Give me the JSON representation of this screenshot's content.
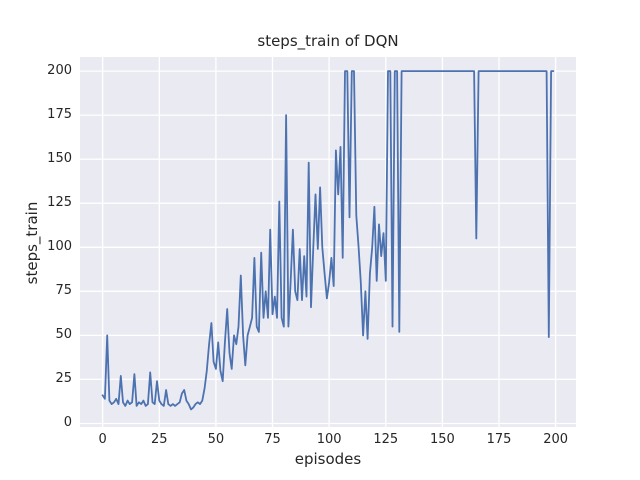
{
  "colors": {
    "line": "#4C72B0",
    "plot_background": "#EAEAF2",
    "grid": "#FFFFFF",
    "text": "#262626",
    "figure_background": "#FFFFFF"
  },
  "chart_data": {
    "type": "line",
    "title": "steps_train of DQN",
    "xlabel": "episodes",
    "ylabel": "steps_train",
    "x_ticks": [
      0,
      25,
      50,
      75,
      100,
      125,
      150,
      175,
      200
    ],
    "y_ticks": [
      0,
      25,
      50,
      75,
      100,
      125,
      150,
      175,
      200
    ],
    "xlim": [
      -10,
      209
    ],
    "ylim": [
      -2,
      208
    ],
    "grid": true,
    "legend": false,
    "series": [
      {
        "name": "steps_train",
        "color": "#4C72B0",
        "x_start": 0,
        "x_step": 1,
        "values": [
          16,
          14,
          50,
          13,
          11,
          12,
          14,
          11,
          27,
          12,
          10,
          13,
          11,
          12,
          28,
          10,
          12,
          11,
          13,
          10,
          11,
          29,
          12,
          11,
          24,
          13,
          11,
          10,
          19,
          11,
          10,
          11,
          10,
          11,
          12,
          17,
          19,
          13,
          11,
          8,
          9,
          11,
          12,
          11,
          13,
          20,
          30,
          45,
          57,
          35,
          31,
          46,
          30,
          24,
          46,
          65,
          40,
          31,
          50,
          45,
          55,
          84,
          50,
          33,
          50,
          55,
          60,
          94,
          55,
          52,
          97,
          60,
          75,
          60,
          110,
          62,
          72,
          60,
          126,
          60,
          55,
          175,
          55,
          80,
          110,
          75,
          70,
          99,
          70,
          95,
          72,
          148,
          66,
          100,
          130,
          99,
          134,
          100,
          85,
          71,
          80,
          94,
          78,
          155,
          130,
          157,
          94,
          200,
          200,
          117,
          200,
          200,
          118,
          100,
          80,
          50,
          75,
          48,
          85,
          100,
          123,
          81,
          113,
          95,
          108,
          81,
          200,
          200,
          55,
          200,
          200,
          52,
          200,
          200,
          200,
          200,
          200,
          200,
          200,
          200,
          200,
          200,
          200,
          200,
          200,
          200,
          200,
          200,
          200,
          200,
          200,
          200,
          200,
          200,
          200,
          200,
          200,
          200,
          200,
          200,
          200,
          200,
          200,
          200,
          200,
          105,
          200,
          200,
          200,
          200,
          200,
          200,
          200,
          200,
          200,
          200,
          200,
          200,
          200,
          200,
          200,
          200,
          200,
          200,
          200,
          200,
          200,
          200,
          200,
          200,
          200,
          200,
          200,
          200,
          200,
          200,
          200,
          49,
          200,
          200
        ]
      }
    ]
  }
}
